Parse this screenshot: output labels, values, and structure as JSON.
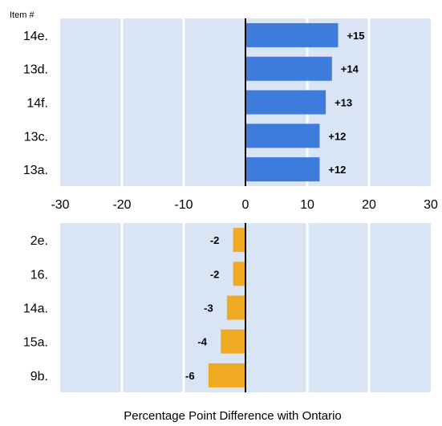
{
  "chart_data": {
    "type": "bar",
    "orientation": "horizontal",
    "header": "Item #",
    "xlabel": "Percentage Point Difference with Ontario",
    "xlim": [
      -30,
      30
    ],
    "xticks": [
      "-30",
      "-20",
      "-10",
      "0",
      "10",
      "20",
      "30"
    ],
    "grid": true,
    "panels": [
      {
        "name": "top",
        "categories": [
          "14e.",
          "13d.",
          "14f.",
          "13c.",
          "13a."
        ],
        "values": [
          15,
          14,
          13,
          12,
          12
        ],
        "labels": [
          "+15",
          "+14",
          "+13",
          "+12",
          "+12"
        ],
        "color": "#3D7BDD"
      },
      {
        "name": "bottom",
        "categories": [
          "2e.",
          "16.",
          "14a.",
          "15a.",
          "9b."
        ],
        "values": [
          -2,
          -2,
          -3,
          -4,
          -6
        ],
        "labels": [
          "-2",
          "-2",
          "-3",
          "-4",
          "-6"
        ],
        "color": "#F0AA22"
      }
    ]
  },
  "colors": {
    "plot_background": "#D9E4F5",
    "gridline": "#FFFFFF",
    "zero_axis": "#000000"
  }
}
